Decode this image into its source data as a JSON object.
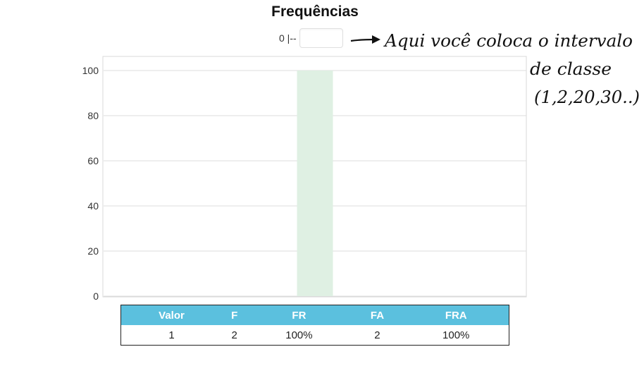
{
  "title": "Frequências",
  "interval": {
    "prefix": "0 |--",
    "value": "",
    "placeholder": ""
  },
  "annotation": {
    "lines": [
      "Aqui você coloca o intervalo",
      "de classe",
      "(1,2,20,30..)"
    ]
  },
  "chart_data": {
    "type": "bar",
    "categories": [
      ""
    ],
    "values": [
      100
    ],
    "ylim": [
      0,
      100
    ],
    "yticks": [
      0,
      20,
      40,
      60,
      80,
      100
    ],
    "bar_color": "#dff0e3",
    "grid": true
  },
  "table": {
    "headers": [
      "Valor",
      "F",
      "FR",
      "FA",
      "FRA"
    ],
    "rows": [
      [
        "1",
        "2",
        "100%",
        "2",
        "100%"
      ]
    ],
    "header_color": "#5bc0de"
  }
}
